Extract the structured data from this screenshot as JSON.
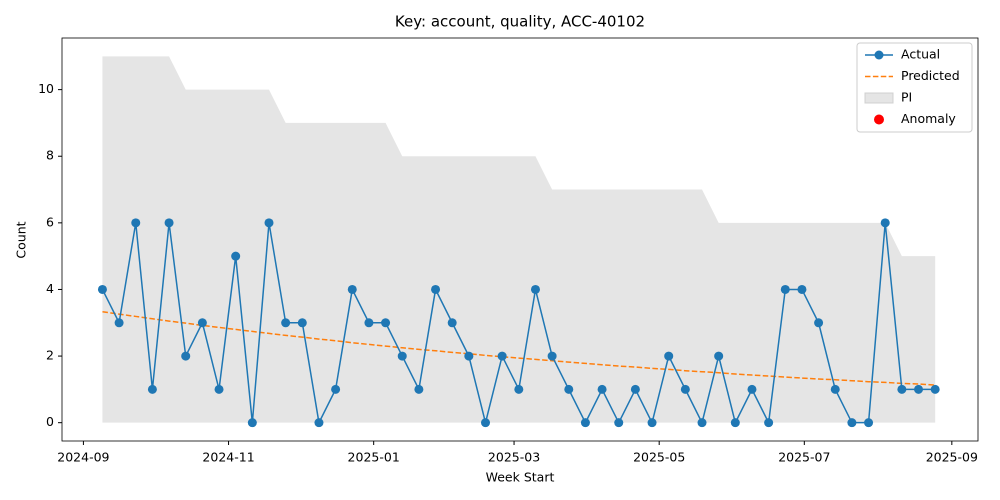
{
  "chart_data": {
    "type": "line",
    "title": "Key: account, quality, ACC-40102",
    "xlabel": "Week Start",
    "ylabel": "Count",
    "x": [
      "2024-09-09",
      "2024-09-16",
      "2024-09-23",
      "2024-09-30",
      "2024-10-07",
      "2024-10-14",
      "2024-10-21",
      "2024-10-28",
      "2024-11-04",
      "2024-11-11",
      "2024-11-18",
      "2024-11-25",
      "2024-12-02",
      "2024-12-09",
      "2024-12-16",
      "2024-12-23",
      "2024-12-30",
      "2025-01-06",
      "2025-01-13",
      "2025-01-20",
      "2025-01-27",
      "2025-02-03",
      "2025-02-10",
      "2025-02-17",
      "2025-02-24",
      "2025-03-03",
      "2025-03-10",
      "2025-03-17",
      "2025-03-24",
      "2025-03-31",
      "2025-04-07",
      "2025-04-14",
      "2025-04-21",
      "2025-04-28",
      "2025-05-05",
      "2025-05-12",
      "2025-05-19",
      "2025-05-26",
      "2025-06-02",
      "2025-06-09",
      "2025-06-16",
      "2025-06-23",
      "2025-06-30",
      "2025-07-07",
      "2025-07-14",
      "2025-07-21",
      "2025-07-28",
      "2025-08-04",
      "2025-08-11",
      "2025-08-18",
      "2025-08-25"
    ],
    "series": [
      {
        "name": "Actual",
        "color": "#1f77b4",
        "style": "line-marker",
        "values": [
          4,
          3,
          6,
          1,
          6,
          2,
          3,
          1,
          5,
          0,
          6,
          3,
          3,
          0,
          1,
          4,
          3,
          3,
          2,
          1,
          4,
          3,
          2,
          0,
          2,
          1,
          4,
          2,
          1,
          0,
          1,
          0,
          1,
          0,
          2,
          1,
          0,
          2,
          0,
          1,
          0,
          4,
          4,
          3,
          1,
          0,
          0,
          6,
          1,
          1,
          1
        ]
      },
      {
        "name": "Predicted",
        "color": "#ff7f0e",
        "style": "dashed",
        "values": [
          3.33,
          3.26,
          3.19,
          3.12,
          3.05,
          2.99,
          2.92,
          2.86,
          2.8,
          2.74,
          2.68,
          2.62,
          2.57,
          2.51,
          2.46,
          2.4,
          2.35,
          2.3,
          2.25,
          2.2,
          2.16,
          2.11,
          2.07,
          2.02,
          1.98,
          1.94,
          1.9,
          1.86,
          1.82,
          1.78,
          1.74,
          1.7,
          1.67,
          1.63,
          1.6,
          1.56,
          1.53,
          1.5,
          1.46,
          1.43,
          1.4,
          1.37,
          1.34,
          1.31,
          1.29,
          1.26,
          1.23,
          1.21,
          1.18,
          1.16,
          1.13
        ]
      },
      {
        "name": "PI",
        "color": "#e5e5e5",
        "style": "band",
        "lower": [
          0,
          0,
          0,
          0,
          0,
          0,
          0,
          0,
          0,
          0,
          0,
          0,
          0,
          0,
          0,
          0,
          0,
          0,
          0,
          0,
          0,
          0,
          0,
          0,
          0,
          0,
          0,
          0,
          0,
          0,
          0,
          0,
          0,
          0,
          0,
          0,
          0,
          0,
          0,
          0,
          0,
          0,
          0,
          0,
          0,
          0,
          0,
          0,
          0,
          0,
          0
        ],
        "upper": [
          11,
          11,
          11,
          11,
          11,
          10,
          10,
          10,
          10,
          10,
          10,
          9,
          9,
          9,
          9,
          9,
          9,
          9,
          8,
          8,
          8,
          8,
          8,
          8,
          8,
          8,
          8,
          7,
          7,
          7,
          7,
          7,
          7,
          7,
          7,
          7,
          7,
          6,
          6,
          6,
          6,
          6,
          6,
          6,
          6,
          6,
          6,
          6,
          5,
          5,
          5
        ]
      },
      {
        "name": "Anomaly",
        "color": "#ff0000",
        "style": "scatter",
        "values": [
          null,
          null,
          null,
          null,
          null,
          null,
          null,
          null,
          null,
          null,
          null,
          null,
          null,
          null,
          null,
          null,
          null,
          null,
          null,
          null,
          null,
          null,
          null,
          null,
          null,
          null,
          null,
          null,
          null,
          null,
          null,
          null,
          null,
          null,
          null,
          null,
          null,
          null,
          null,
          null,
          null,
          null,
          null,
          null,
          null,
          null,
          null,
          null,
          null,
          null,
          null
        ]
      }
    ],
    "xlim": [
      "2024-08-23",
      "2025-09-12"
    ],
    "xticks": [
      {
        "value": "2024-09-01",
        "label": "2024-09"
      },
      {
        "value": "2024-11-01",
        "label": "2024-11"
      },
      {
        "value": "2025-01-01",
        "label": "2025-01"
      },
      {
        "value": "2025-03-01",
        "label": "2025-03"
      },
      {
        "value": "2025-05-01",
        "label": "2025-05"
      },
      {
        "value": "2025-07-01",
        "label": "2025-07"
      },
      {
        "value": "2025-09-01",
        "label": "2025-09"
      }
    ],
    "ylim": [
      -0.55,
      11.55
    ],
    "yticks": [
      0,
      2,
      4,
      6,
      8,
      10
    ],
    "grid": false,
    "legend": "upper right"
  }
}
